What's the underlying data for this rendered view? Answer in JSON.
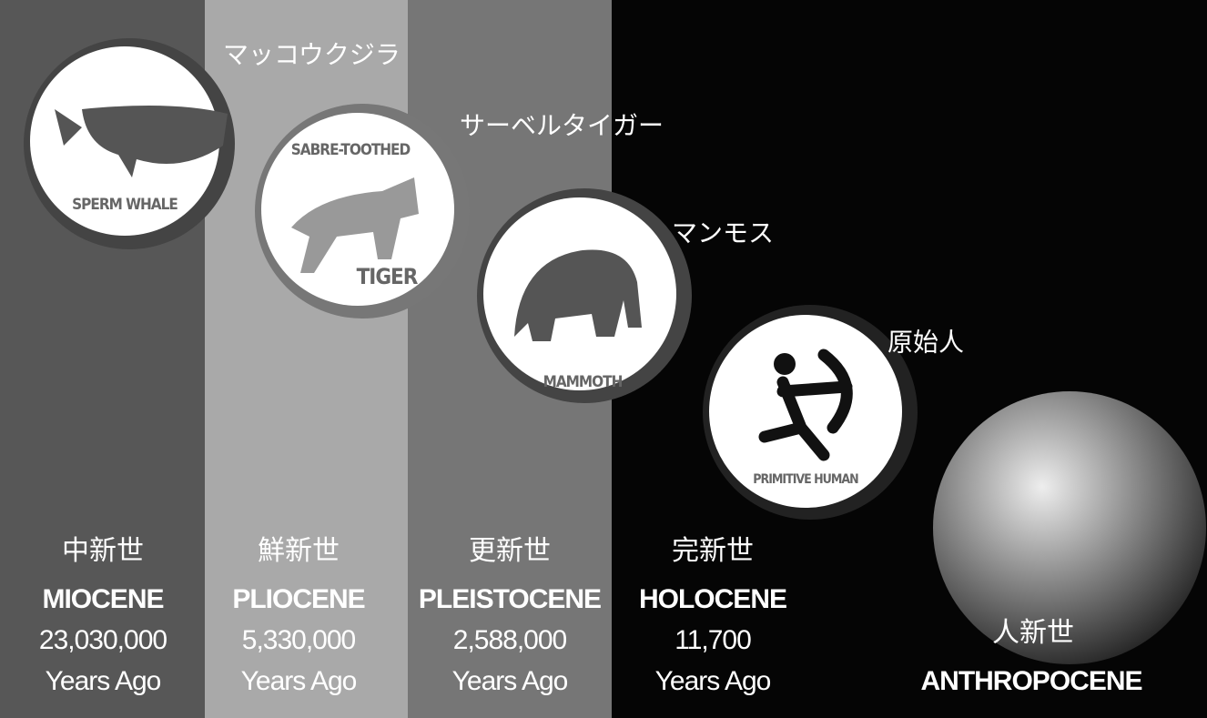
{
  "eras": [
    {
      "kanji": "中新世",
      "name": "MIOCENE",
      "years": "23,030,000",
      "suffix": "Years Ago"
    },
    {
      "kanji": "鮮新世",
      "name": "PLIOCENE",
      "years": "5,330,000",
      "suffix": "Years Ago"
    },
    {
      "kanji": "更新世",
      "name": "PLEISTOCENE",
      "years": "2,588,000",
      "suffix": "Years Ago"
    },
    {
      "kanji": "完新世",
      "name": "HOLOCENE",
      "years": "11,700",
      "suffix": "Years Ago"
    },
    {
      "kanji": "人新世",
      "name": "ANTHROPOCENE"
    }
  ],
  "animals": [
    {
      "icon_text": [
        "SPERM WHALE"
      ],
      "label": "マッコウクジラ"
    },
    {
      "icon_text": [
        "SABRE-TOOTHED",
        "TIGER"
      ],
      "label": "サーベルタイガー"
    },
    {
      "icon_text": [
        "MAMMOTH"
      ],
      "label": "マンモス"
    },
    {
      "icon_text": [
        "PRIMITIVE HUMAN"
      ],
      "label": "原始人"
    }
  ]
}
